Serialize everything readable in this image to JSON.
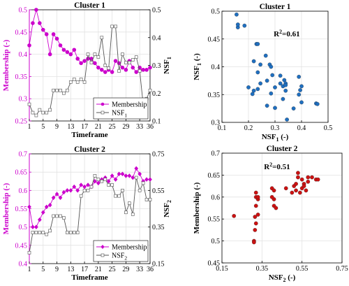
{
  "chart_data": [
    {
      "id": "ts1",
      "type": "line",
      "title": "Cluster 1",
      "xlabel": "Timeframe",
      "ylabel_left": "Membership (-)",
      "ylabel_right": "NSF",
      "ylabel_right_sub": "1",
      "xlim": [
        1,
        36
      ],
      "xticks": [
        1,
        5,
        9,
        13,
        17,
        21,
        25,
        29,
        33,
        36
      ],
      "ylim_left": [
        0.25,
        0.5
      ],
      "yticks_left": [
        "0.25",
        "0.3",
        "0.35",
        "0.4",
        "0.45",
        "0.5"
      ],
      "ylim_right": [
        0.1,
        0.5
      ],
      "yticks_right": [
        "0.1",
        "0.2",
        "0.3",
        "0.4",
        "0.5"
      ],
      "grid": true,
      "legend_position": "bottom-right",
      "colors": {
        "membership": "#cc00cc",
        "nsf": "#808080",
        "left_axis": "#cc00cc"
      },
      "x": [
        1,
        2,
        3,
        4,
        5,
        6,
        7,
        8,
        9,
        10,
        11,
        12,
        13,
        14,
        15,
        16,
        17,
        18,
        19,
        20,
        21,
        22,
        23,
        24,
        25,
        26,
        27,
        28,
        29,
        30,
        31,
        32,
        33,
        34,
        35,
        36
      ],
      "series": [
        {
          "name": "Membership",
          "axis": "left",
          "marker": "circle",
          "values": [
            0.42,
            0.47,
            0.5,
            0.47,
            0.455,
            0.445,
            0.4,
            0.445,
            0.435,
            0.42,
            0.41,
            0.405,
            0.4,
            0.41,
            0.39,
            0.38,
            0.385,
            0.39,
            0.39,
            0.38,
            0.37,
            0.365,
            0.36,
            0.365,
            0.36,
            0.385,
            0.38,
            0.37,
            0.365,
            0.385,
            0.37,
            0.36,
            0.37,
            0.365,
            0.365,
            0.37
          ]
        },
        {
          "name": "NSF",
          "name_sub": "1",
          "axis": "right",
          "marker": "square",
          "values": [
            0.16,
            0.13,
            0.12,
            0.14,
            0.13,
            0.13,
            0.14,
            0.21,
            0.21,
            0.21,
            0.2,
            0.21,
            0.24,
            0.25,
            0.24,
            0.25,
            0.24,
            0.34,
            0.31,
            0.34,
            0.33,
            0.4,
            0.3,
            0.29,
            0.44,
            0.44,
            0.28,
            0.34,
            0.31,
            0.31,
            0.32,
            0.33,
            0.28,
            0.16,
            0.18,
            0.21
          ]
        }
      ]
    },
    {
      "id": "sc1",
      "type": "scatter",
      "title": "Cluster 1",
      "xlabel": "NSF",
      "xlabel_sub": "1",
      "xlabel_suffix": " (-)",
      "ylabel": "NSF",
      "ylabel_sub": "1",
      "ylabel_suffix": " (-)",
      "xlim": [
        0.1,
        0.5
      ],
      "xticks": [
        "0.1",
        "0.2",
        "0.3",
        "0.4",
        "0.5"
      ],
      "ylim": [
        0.3,
        0.5
      ],
      "yticks": [
        "0.3",
        "0.35",
        "0.4",
        "0.45",
        "0.5"
      ],
      "grid": true,
      "color": "#1f6fc0",
      "annotation": {
        "text": "R",
        "sup": "2",
        "rest": "=0.61",
        "at": [
          0.295,
          0.455
        ]
      },
      "points": [
        [
          0.155,
          0.494
        ],
        [
          0.16,
          0.471
        ],
        [
          0.16,
          0.476
        ],
        [
          0.185,
          0.474
        ],
        [
          0.23,
          0.441
        ],
        [
          0.235,
          0.441
        ],
        [
          0.22,
          0.41
        ],
        [
          0.235,
          0.39
        ],
        [
          0.265,
          0.42
        ],
        [
          0.28,
          0.404
        ],
        [
          0.285,
          0.4
        ],
        [
          0.245,
          0.404
        ],
        [
          0.29,
          0.385
        ],
        [
          0.2,
          0.363
        ],
        [
          0.22,
          0.357
        ],
        [
          0.215,
          0.351
        ],
        [
          0.235,
          0.36
        ],
        [
          0.245,
          0.37
        ],
        [
          0.27,
          0.375
        ],
        [
          0.285,
          0.352
        ],
        [
          0.3,
          0.326
        ],
        [
          0.32,
          0.384
        ],
        [
          0.32,
          0.37
        ],
        [
          0.33,
          0.365
        ],
        [
          0.335,
          0.376
        ],
        [
          0.34,
          0.37
        ],
        [
          0.33,
          0.342
        ],
        [
          0.34,
          0.357
        ],
        [
          0.345,
          0.305
        ],
        [
          0.37,
          0.325
        ],
        [
          0.39,
          0.382
        ],
        [
          0.39,
          0.35
        ],
        [
          0.395,
          0.358
        ],
        [
          0.4,
          0.365
        ],
        [
          0.4,
          0.336
        ],
        [
          0.455,
          0.334
        ],
        [
          0.46,
          0.333
        ],
        [
          0.34,
          0.367
        ],
        [
          0.27,
          0.33
        ],
        [
          0.3,
          0.363
        ]
      ]
    },
    {
      "id": "ts2",
      "type": "line",
      "title": "Cluster 2",
      "xlabel": "Timeframe",
      "ylabel_left": "Membership (-)",
      "ylabel_right": "NSF",
      "ylabel_right_sub": "2",
      "xlim": [
        1,
        36
      ],
      "xticks": [
        1,
        5,
        9,
        13,
        17,
        21,
        25,
        29,
        33,
        36
      ],
      "ylim_left": [
        0.4,
        0.7
      ],
      "yticks_left": [
        "0.4",
        "0.45",
        "0.5",
        "0.55",
        "0.6",
        "0.65",
        "0.7"
      ],
      "ylim_right": [
        0.15,
        0.75
      ],
      "yticks_right": [
        "0.15",
        "0.35",
        "0.55",
        "0.75"
      ],
      "grid": true,
      "legend_position": "bottom-right",
      "colors": {
        "membership": "#cc00cc",
        "nsf": "#808080",
        "left_axis": "#cc00cc"
      },
      "x": [
        1,
        2,
        3,
        4,
        5,
        6,
        7,
        8,
        9,
        10,
        11,
        12,
        13,
        14,
        15,
        16,
        17,
        18,
        19,
        20,
        21,
        22,
        23,
        24,
        25,
        26,
        27,
        28,
        29,
        30,
        31,
        32,
        33,
        34,
        35,
        36
      ],
      "series": [
        {
          "name": "Membership",
          "axis": "left",
          "marker": "diamond",
          "values": [
            0.555,
            0.5,
            0.5,
            0.52,
            0.54,
            0.555,
            0.56,
            0.58,
            0.59,
            0.58,
            0.595,
            0.6,
            0.6,
            0.61,
            0.6,
            0.615,
            0.61,
            0.615,
            0.61,
            0.625,
            0.62,
            0.63,
            0.635,
            0.625,
            0.64,
            0.63,
            0.645,
            0.645,
            0.64,
            0.64,
            0.635,
            0.66,
            0.645,
            0.625,
            0.63,
            0.63
          ]
        },
        {
          "name": "NSF",
          "name_sub": "2",
          "axis": "right",
          "marker": "square",
          "values": [
            0.21,
            0.32,
            0.32,
            0.32,
            0.32,
            0.31,
            0.33,
            0.41,
            0.41,
            0.41,
            0.4,
            0.32,
            0.32,
            0.32,
            0.32,
            0.52,
            0.55,
            0.55,
            0.57,
            0.63,
            0.61,
            0.6,
            0.61,
            0.58,
            0.58,
            0.52,
            0.52,
            0.55,
            0.43,
            0.48,
            0.42,
            0.62,
            0.55,
            0.59,
            0.5,
            0.5
          ]
        }
      ]
    },
    {
      "id": "sc2",
      "type": "scatter",
      "title": "Cluster 2",
      "xlabel": "NSF",
      "xlabel_sub": "2",
      "xlabel_suffix": " (-)",
      "ylabel": "Membership (-)",
      "xlim": [
        0.15,
        0.75
      ],
      "xticks": [
        "0.15",
        "0.35",
        "0.55",
        "0.75"
      ],
      "ylim": [
        0.45,
        0.7
      ],
      "yticks": [
        "0.45",
        "0.5",
        "0.55",
        "0.6",
        "0.65",
        "0.7"
      ],
      "grid": true,
      "color": "#cc1111",
      "annotation": {
        "text": "R",
        "sup": "2",
        "rest": "=0.51",
        "at": [
          0.36,
          0.663
        ]
      },
      "points": [
        [
          0.21,
          0.557
        ],
        [
          0.31,
          0.5
        ],
        [
          0.31,
          0.497
        ],
        [
          0.315,
          0.525
        ],
        [
          0.32,
          0.54
        ],
        [
          0.315,
          0.555
        ],
        [
          0.33,
          0.56
        ],
        [
          0.33,
          0.595
        ],
        [
          0.32,
          0.6
        ],
        [
          0.32,
          0.58
        ],
        [
          0.32,
          0.61
        ],
        [
          0.33,
          0.6
        ],
        [
          0.4,
          0.62
        ],
        [
          0.41,
          0.595
        ],
        [
          0.41,
          0.58
        ],
        [
          0.4,
          0.6
        ],
        [
          0.41,
          0.615
        ],
        [
          0.42,
          0.575
        ],
        [
          0.5,
          0.61
        ],
        [
          0.51,
          0.625
        ],
        [
          0.52,
          0.615
        ],
        [
          0.53,
          0.655
        ],
        [
          0.53,
          0.645
        ],
        [
          0.52,
          0.63
        ],
        [
          0.55,
          0.62
        ],
        [
          0.56,
          0.63
        ],
        [
          0.55,
          0.64
        ],
        [
          0.57,
          0.615
        ],
        [
          0.58,
          0.645
        ],
        [
          0.58,
          0.635
        ],
        [
          0.6,
          0.645
        ],
        [
          0.62,
          0.64
        ],
        [
          0.63,
          0.64
        ],
        [
          0.54,
          0.61
        ],
        [
          0.56,
          0.625
        ],
        [
          0.47,
          0.62
        ]
      ]
    }
  ]
}
